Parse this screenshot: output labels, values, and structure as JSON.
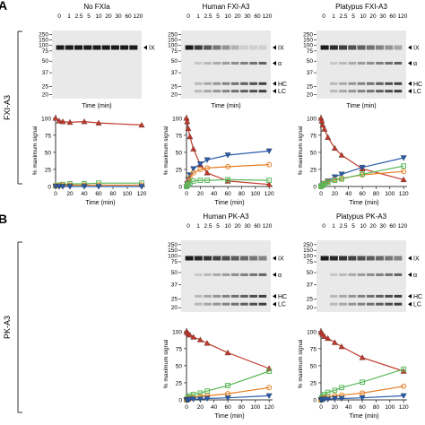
{
  "panels": [
    {
      "letter": "A",
      "side_label": "FXI-A3"
    },
    {
      "letter": "B",
      "side_label": "PK-A3"
    }
  ],
  "gel_common": {
    "times": [
      "0",
      "1",
      "2.5",
      "5",
      "10",
      "20",
      "30",
      "60",
      "120"
    ],
    "mw_markers": [
      "250",
      "150",
      "100",
      "75",
      "50",
      "37",
      "25",
      "20"
    ],
    "band_labels": {
      "ix": "IX",
      "alpha": "α",
      "hc": "HC",
      "lc": "LC"
    },
    "xlabel": "Time (min)"
  },
  "gels": [
    {
      "id": "gel-a1",
      "title": "No FXIa",
      "times_label": [
        "0",
        "1",
        "2.5",
        "5",
        "10",
        "20",
        "30",
        "60",
        "120"
      ]
    },
    {
      "id": "gel-a2",
      "title": "Human FXI-A3"
    },
    {
      "id": "gel-a3",
      "title": "Platypus FXI-A3"
    },
    {
      "id": "gel-b1",
      "title": "Human PK-A3"
    },
    {
      "id": "gel-b2",
      "title": "Platypus PK-A3"
    }
  ],
  "chart_data": [
    {
      "id": "chart-a1",
      "type": "line",
      "xlabel": "Time (min)",
      "ylabel": "% maximum signal",
      "xticks": [
        0,
        20,
        40,
        60,
        80,
        100,
        120
      ],
      "yticks": [
        0,
        25,
        50,
        75,
        100
      ],
      "xlim": [
        0,
        125
      ],
      "ylim": [
        0,
        105
      ],
      "x": [
        0,
        5,
        10,
        20,
        40,
        60,
        120
      ],
      "series": [
        {
          "values": [
            100,
            96,
            95,
            94,
            95,
            93,
            90
          ],
          "color": "#c0392b",
          "marker": "triangle-up"
        },
        {
          "values": [
            1,
            2,
            3,
            4,
            4,
            5,
            5
          ],
          "color": "#5cb85c",
          "marker": "square"
        },
        {
          "values": [
            1,
            1,
            2,
            2,
            2,
            2,
            2
          ],
          "color": "#e67e22",
          "marker": "circle"
        },
        {
          "values": [
            0,
            0,
            0,
            0,
            0,
            0,
            0
          ],
          "color": "#2a5caa",
          "marker": "triangle-down"
        }
      ]
    },
    {
      "id": "chart-a2",
      "type": "line",
      "xlabel": "Time (min)",
      "ylabel": "% maximum signal",
      "xticks": [
        0,
        20,
        40,
        60,
        80,
        100,
        120
      ],
      "yticks": [
        0,
        25,
        50,
        75,
        100
      ],
      "xlim": [
        0,
        125
      ],
      "ylim": [
        0,
        105
      ],
      "x": [
        0,
        1,
        2.5,
        5,
        10,
        20,
        30,
        60,
        120
      ],
      "series": [
        {
          "values": [
            100,
            95,
            85,
            73,
            55,
            32,
            20,
            8,
            3
          ],
          "color": "#c0392b",
          "marker": "triangle-up"
        },
        {
          "values": [
            0,
            4,
            10,
            17,
            26,
            33,
            39,
            46,
            52
          ],
          "color": "#2a5caa",
          "marker": "triangle-down"
        },
        {
          "values": [
            0,
            3,
            8,
            13,
            20,
            25,
            27,
            29,
            32
          ],
          "color": "#e67e22",
          "marker": "circle"
        },
        {
          "values": [
            0,
            1,
            3,
            5,
            8,
            9,
            9,
            10,
            9
          ],
          "color": "#5cb85c",
          "marker": "square"
        }
      ]
    },
    {
      "id": "chart-a3",
      "type": "line",
      "xlabel": "Time (min)",
      "ylabel": "% maximum signal",
      "xticks": [
        0,
        20,
        40,
        60,
        80,
        100,
        120
      ],
      "yticks": [
        0,
        25,
        50,
        75,
        100
      ],
      "xlim": [
        0,
        125
      ],
      "ylim": [
        0,
        105
      ],
      "x": [
        0,
        1,
        2.5,
        5,
        10,
        20,
        30,
        60,
        120
      ],
      "series": [
        {
          "values": [
            100,
            96,
            90,
            84,
            72,
            56,
            46,
            26,
            10
          ],
          "color": "#c0392b",
          "marker": "triangle-up"
        },
        {
          "values": [
            0,
            1,
            2,
            4,
            8,
            14,
            18,
            28,
            42
          ],
          "color": "#2a5caa",
          "marker": "triangle-down"
        },
        {
          "values": [
            0,
            1,
            3,
            5,
            7,
            10,
            12,
            17,
            22
          ],
          "color": "#e67e22",
          "marker": "circle"
        },
        {
          "values": [
            0,
            1,
            2,
            4,
            6,
            9,
            11,
            18,
            30
          ],
          "color": "#5cb85c",
          "marker": "square"
        }
      ]
    },
    {
      "id": "chart-b1",
      "type": "line",
      "xlabel": "Time (min)",
      "ylabel": "% maximum signal",
      "xticks": [
        0,
        20,
        40,
        60,
        80,
        100,
        120
      ],
      "yticks": [
        0,
        25,
        50,
        75,
        100
      ],
      "xlim": [
        0,
        125
      ],
      "ylim": [
        0,
        105
      ],
      "x": [
        0,
        1,
        2.5,
        5,
        10,
        20,
        30,
        60,
        120
      ],
      "series": [
        {
          "values": [
            100,
            99,
            97,
            95,
            92,
            88,
            83,
            69,
            46
          ],
          "color": "#c0392b",
          "marker": "triangle-up"
        },
        {
          "values": [
            0,
            2,
            4,
            6,
            8,
            10,
            13,
            21,
            42
          ],
          "color": "#5cb85c",
          "marker": "square"
        },
        {
          "values": [
            0,
            1,
            1,
            2,
            3,
            5,
            6,
            9,
            18
          ],
          "color": "#e67e22",
          "marker": "circle"
        },
        {
          "values": [
            0,
            0,
            0,
            1,
            1,
            1,
            2,
            3,
            6
          ],
          "color": "#2a5caa",
          "marker": "triangle-down"
        }
      ]
    },
    {
      "id": "chart-b2",
      "type": "line",
      "xlabel": "Time (min)",
      "ylabel": "% maximum signal",
      "xticks": [
        0,
        20,
        40,
        60,
        80,
        100,
        120
      ],
      "yticks": [
        0,
        25,
        50,
        75,
        100
      ],
      "xlim": [
        0,
        125
      ],
      "ylim": [
        0,
        105
      ],
      "x": [
        0,
        1,
        2.5,
        5,
        10,
        20,
        30,
        60,
        120
      ],
      "series": [
        {
          "values": [
            100,
            98,
            96,
            93,
            90,
            84,
            78,
            62,
            42
          ],
          "color": "#c0392b",
          "marker": "triangle-up"
        },
        {
          "values": [
            0,
            3,
            5,
            8,
            11,
            14,
            18,
            26,
            45
          ],
          "color": "#5cb85c",
          "marker": "square"
        },
        {
          "values": [
            0,
            1,
            2,
            3,
            4,
            6,
            7,
            10,
            20
          ],
          "color": "#e67e22",
          "marker": "circle"
        },
        {
          "values": [
            0,
            0,
            1,
            1,
            1,
            2,
            2,
            3,
            6
          ],
          "color": "#2a5caa",
          "marker": "triangle-down"
        }
      ]
    }
  ]
}
